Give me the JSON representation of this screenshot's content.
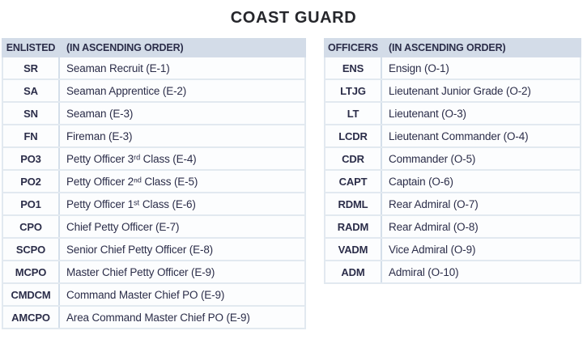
{
  "page": {
    "title": "COAST GUARD"
  },
  "colors": {
    "header_bg": "#d3dce8",
    "row_bg": "#fcfdfe",
    "border": "#e2e9f0",
    "divider": "#d4dfea",
    "ink": "#2b2d49",
    "title_ink": "#25262b"
  },
  "tables": [
    {
      "id": "enlisted",
      "header": {
        "col1": "ENLISTED",
        "col2": "(IN ASCENDING ORDER)"
      },
      "rows": [
        {
          "abbr": "SR",
          "desc": "Seaman Recruit (E-1)"
        },
        {
          "abbr": "SA",
          "desc": "Seaman Apprentice (E-2)"
        },
        {
          "abbr": "SN",
          "desc": "Seaman (E-3)"
        },
        {
          "abbr": "FN",
          "desc": "Fireman (E-3)"
        },
        {
          "abbr": "PO3",
          "desc": "Petty Officer 3ʳᵈ Class (E-4)"
        },
        {
          "abbr": "PO2",
          "desc": "Petty Officer 2ⁿᵈ Class (E-5)"
        },
        {
          "abbr": "PO1",
          "desc": "Petty Officer 1ˢᵗ Class (E-6)"
        },
        {
          "abbr": "CPO",
          "desc": "Chief Petty Officer (E-7)"
        },
        {
          "abbr": "SCPO",
          "desc": "Senior Chief Petty Officer (E-8)"
        },
        {
          "abbr": "MCPO",
          "desc": "Master Chief Petty Officer (E-9)"
        },
        {
          "abbr": "CMDCM",
          "desc": "Command Master Chief PO (E-9)"
        },
        {
          "abbr": "AMCPO",
          "desc": "Area Command Master Chief PO (E-9)"
        }
      ]
    },
    {
      "id": "officers",
      "header": {
        "col1": "OFFICERS",
        "col2": "(IN ASCENDING ORDER)"
      },
      "rows": [
        {
          "abbr": "ENS",
          "desc": "Ensign (O-1)"
        },
        {
          "abbr": "LTJG",
          "desc": "Lieutenant Junior Grade (O-2)"
        },
        {
          "abbr": "LT",
          "desc": "Lieutenant (O-3)"
        },
        {
          "abbr": "LCDR",
          "desc": "Lieutenant Commander (O-4)"
        },
        {
          "abbr": "CDR",
          "desc": "Commander (O-5)"
        },
        {
          "abbr": "CAPT",
          "desc": "Captain (O-6)"
        },
        {
          "abbr": "RDML",
          "desc": "Rear Admiral (O-7)"
        },
        {
          "abbr": "RADM",
          "desc": "Rear Admiral (O-8)"
        },
        {
          "abbr": "VADM",
          "desc": "Vice Admiral (O-9)"
        },
        {
          "abbr": "ADM",
          "desc": "Admiral (O-10)"
        }
      ]
    }
  ]
}
